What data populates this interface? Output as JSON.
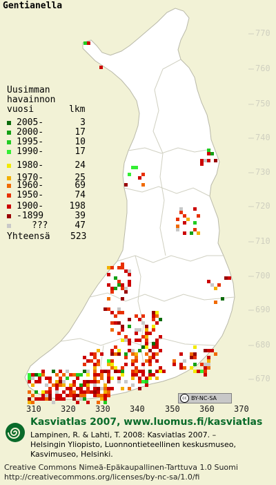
{
  "title": "Gentianella",
  "legend": {
    "header_lines": [
      "Uusimman",
      "havainnon"
    ],
    "header_last": "vuosi",
    "header_count": "lkm",
    "rows": [
      {
        "label": "2005-",
        "count": "3",
        "color": "#0b6b0b"
      },
      {
        "label": "2000-",
        "count": "17",
        "color": "#14a014"
      },
      {
        "label": "1995-",
        "count": "10",
        "color": "#22cc22"
      },
      {
        "label": "1990-",
        "count": "17",
        "color": "#33ee33"
      },
      {
        "label": "1980-",
        "count": "24",
        "color": "#f2ea00"
      },
      {
        "label": "1970-",
        "count": "25",
        "color": "#f2b000"
      },
      {
        "label": "1960-",
        "count": "69",
        "color": "#f06a00"
      },
      {
        "label": "1950-",
        "count": "74",
        "color": "#e83000"
      },
      {
        "label": "1900-",
        "count": "198",
        "color": "#cc0000"
      },
      {
        "label": "-1899",
        "count": "39",
        "color": "#990000"
      },
      {
        "label": "???",
        "count": "47",
        "color": "#c8c8c8"
      }
    ],
    "total_label": "Yhteensä",
    "total_count": "523"
  },
  "lat_labels": [
    "770",
    "760",
    "750",
    "740",
    "730",
    "720",
    "710",
    "700",
    "690",
    "680",
    "670"
  ],
  "lon_labels": [
    "310",
    "320",
    "330",
    "340",
    "350",
    "360",
    "370"
  ],
  "cc_badge": "BY-NC-SA",
  "footer": {
    "headline": "Kasviatlas 2007, www.luomus.fi/kasviatlas",
    "citation": [
      "Lampinen, R. & Lahti, T. 2008: Kasviatlas 2007. –",
      "Helsingin Yliopisto, Luonnontieteellinen keskusmuseo,",
      "Kasvimuseo, Helsinki."
    ],
    "license": [
      "Creative Commons Nimeä-Epäkaupallinen-Tarttuva 1.0 Suomi",
      "http://creativecommons.org/licenses/by-nc-sa/1.0/fi"
    ]
  },
  "map_colors": {
    "background": "#f2f2d6",
    "land": "#ffffff",
    "border": "#c0c0b0",
    "logo_green": "#0a6b2a"
  }
}
